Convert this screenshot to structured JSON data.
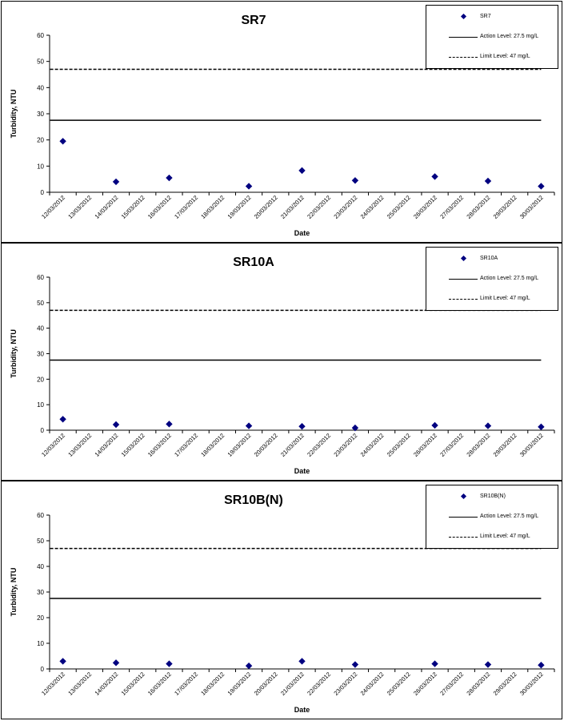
{
  "categories": [
    "12/03/2012",
    "13/03/2012",
    "14/03/2012",
    "15/03/2012",
    "16/03/2012",
    "17/03/2012",
    "18/03/2012",
    "19/03/2012",
    "20/03/2012",
    "21/03/2012",
    "22/03/2012",
    "23/03/2012",
    "24/03/2012",
    "25/03/2012",
    "26/03/2012",
    "27/03/2012",
    "28/03/2012",
    "29/03/2012",
    "30/03/2012"
  ],
  "chart_data": [
    {
      "type": "scatter",
      "title": "SR7",
      "xlabel": "Date",
      "ylabel": "Turbidity, NTU",
      "ylim": [
        0,
        60
      ],
      "yticks": [
        "0",
        "10",
        "20",
        "30",
        "40",
        "50",
        "60"
      ],
      "series": [
        {
          "name": "SR7",
          "marker": "diamond",
          "color": "#000080",
          "points": [
            [
              "12/03/2012",
              19.5
            ],
            [
              "14/03/2012",
              4.0
            ],
            [
              "16/03/2012",
              5.5
            ],
            [
              "19/03/2012",
              2.3
            ],
            [
              "21/03/2012",
              8.3
            ],
            [
              "23/03/2012",
              4.5
            ],
            [
              "26/03/2012",
              6.0
            ],
            [
              "28/03/2012",
              4.3
            ],
            [
              "30/03/2012",
              2.3
            ]
          ]
        }
      ],
      "lines": [
        {
          "name": "Action Level: 27.5 mg/L",
          "value": 27.5,
          "style": "solid"
        },
        {
          "name": "Limit Level: 47 mg/L",
          "value": 47,
          "style": "dashed"
        }
      ],
      "legend_position": "top-right"
    },
    {
      "type": "scatter",
      "title": "SR10A",
      "xlabel": "Date",
      "ylabel": "Turbidity, NTU",
      "ylim": [
        0,
        60
      ],
      "yticks": [
        "0",
        "10",
        "20",
        "30",
        "40",
        "50",
        "60"
      ],
      "series": [
        {
          "name": "SR10A",
          "marker": "diamond",
          "color": "#000080",
          "points": [
            [
              "12/03/2012",
              4.3
            ],
            [
              "14/03/2012",
              2.2
            ],
            [
              "16/03/2012",
              2.4
            ],
            [
              "19/03/2012",
              1.7
            ],
            [
              "21/03/2012",
              1.5
            ],
            [
              "23/03/2012",
              0.9
            ],
            [
              "26/03/2012",
              1.9
            ],
            [
              "28/03/2012",
              1.7
            ],
            [
              "30/03/2012",
              1.3
            ]
          ]
        }
      ],
      "lines": [
        {
          "name": "Action Level: 27.5 mg/L",
          "value": 27.5,
          "style": "solid"
        },
        {
          "name": "Limit Level: 47 mg/L",
          "value": 47,
          "style": "dashed"
        }
      ],
      "legend_position": "top-right"
    },
    {
      "type": "scatter",
      "title": "SR10B(N)",
      "xlabel": "Date",
      "ylabel": "Turbidity, NTU",
      "ylim": [
        0,
        60
      ],
      "yticks": [
        "0",
        "10",
        "20",
        "30",
        "40",
        "50",
        "60"
      ],
      "series": [
        {
          "name": "SR10B(N)",
          "marker": "diamond",
          "color": "#000080",
          "points": [
            [
              "12/03/2012",
              3.0
            ],
            [
              "14/03/2012",
              2.4
            ],
            [
              "16/03/2012",
              2.0
            ],
            [
              "19/03/2012",
              1.2
            ],
            [
              "21/03/2012",
              3.0
            ],
            [
              "23/03/2012",
              1.7
            ],
            [
              "26/03/2012",
              2.0
            ],
            [
              "28/03/2012",
              1.7
            ],
            [
              "30/03/2012",
              1.5
            ]
          ]
        }
      ],
      "lines": [
        {
          "name": "Action Level: 27.5 mg/L",
          "value": 27.5,
          "style": "solid"
        },
        {
          "name": "Limit Level: 47 mg/L",
          "value": 47,
          "style": "dashed"
        }
      ],
      "legend_position": "top-right"
    }
  ]
}
